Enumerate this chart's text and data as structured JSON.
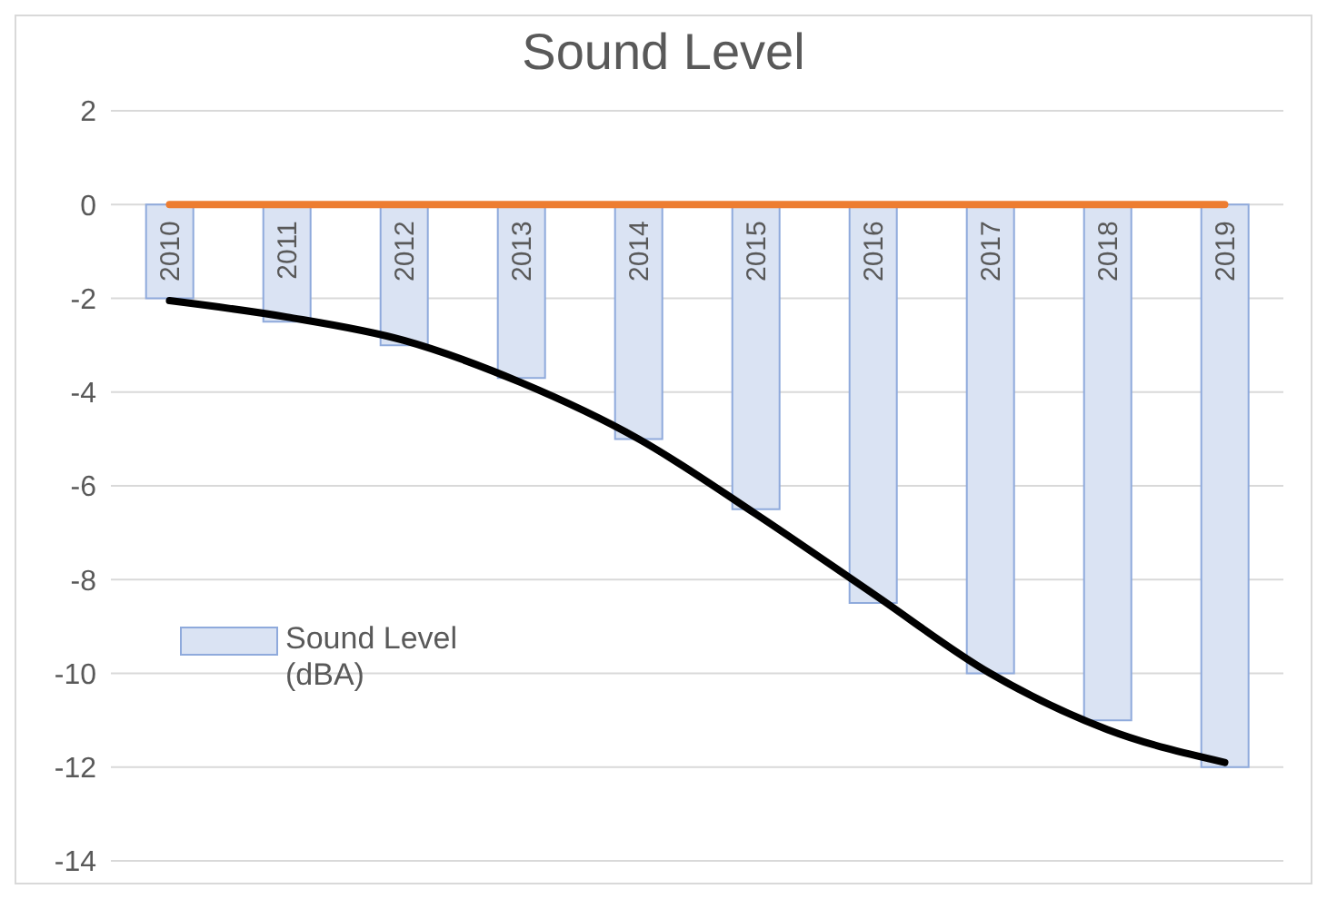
{
  "chart_data": {
    "type": "bar",
    "title": "Sound Level",
    "categories": [
      "2010",
      "2011",
      "2012",
      "2013",
      "2014",
      "2015",
      "2016",
      "2017",
      "2018",
      "2019"
    ],
    "series": [
      {
        "name": "Sound Level (dBA)",
        "color": "#dae3f3",
        "values": [
          -2,
          -2.5,
          -3,
          -3.7,
          -5,
          -6.5,
          -8.5,
          -10,
          -11,
          -12
        ]
      },
      {
        "type": "line",
        "color": "#ed7d31",
        "values": [
          0,
          0,
          0,
          0,
          0,
          0,
          0,
          0,
          0,
          0
        ]
      },
      {
        "type": "line",
        "color": "#000000",
        "values": [
          -2.05,
          -2.4,
          -2.9,
          -3.8,
          -5,
          -6.6,
          -8.3,
          -10,
          -11.2,
          -11.9
        ]
      }
    ],
    "ylim": [
      -14,
      2
    ],
    "yticks": [
      -14,
      -12,
      -10,
      -8,
      -6,
      -4,
      -2,
      0,
      2
    ],
    "grid": "y",
    "legend": "left",
    "marker": "none"
  }
}
